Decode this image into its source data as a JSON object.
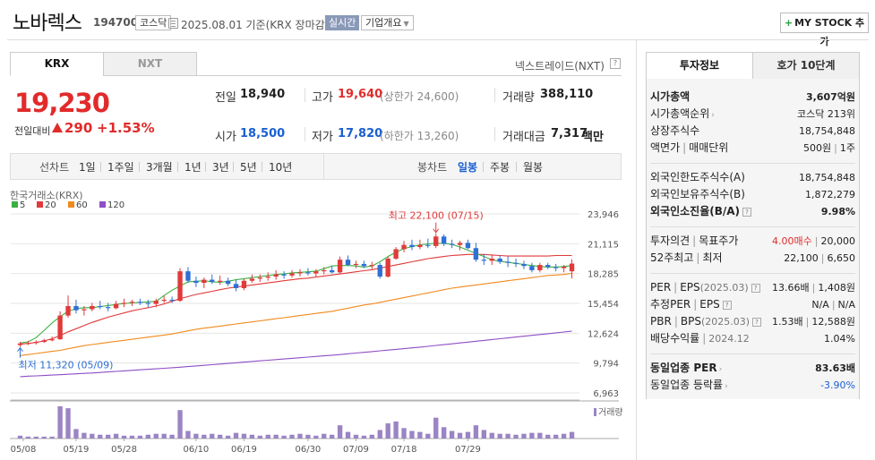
{
  "header": {
    "name": "노바렉스",
    "code": "194700",
    "market": "코스닥",
    "date_text": "2025.08.01 기준(KRX 장마감)",
    "realtime_label": "실시간",
    "overview_label": "기업개요",
    "mystock_label": "MY STOCK 추가"
  },
  "exchange_tabs": {
    "krx": "KRX",
    "nxt": "NXT"
  },
  "nxt_link": "넥스트레이드(NXT)",
  "price": {
    "current": "19,230",
    "change_label": "전일대비",
    "change_value": "290",
    "change_pct": "+1.53%"
  },
  "quote": {
    "prev_label": "전일",
    "prev_value": "18,940",
    "high_label": "고가",
    "high_value": "19,640",
    "upper_limit": "(상한가 24,600)",
    "volume_label": "거래량",
    "volume_value": "388,110",
    "open_label": "시가",
    "open_value": "18,500",
    "low_label": "저가",
    "low_value": "17,820",
    "lower_limit": "(하한가 13,260)",
    "amount_label": "거래대금",
    "amount_value": "7,317",
    "amount_unit": "백만"
  },
  "period_bar": {
    "line_label": "선차트",
    "line_periods": [
      "1일",
      "1주일",
      "3개월",
      "1년",
      "3년",
      "5년",
      "10년"
    ],
    "candle_label": "봉차트",
    "candle_periods": [
      "일봉",
      "주봉",
      "월봉"
    ],
    "selected": "일봉"
  },
  "chart_data": {
    "type": "candlestick",
    "source_label": "한국거래소(KRX)",
    "legend": [
      {
        "name": "5",
        "color": "#3bb143"
      },
      {
        "name": "20",
        "color": "#e03a3a"
      },
      {
        "name": "60",
        "color": "#f08a1e"
      },
      {
        "name": "120",
        "color": "#8e4ec6"
      }
    ],
    "y_ticks": [
      "23,946",
      "21,115",
      "18,285",
      "15,454",
      "12,624",
      "9,794",
      "6,963"
    ],
    "y_range": [
      6963,
      23946
    ],
    "x_labels": [
      "05/08",
      "05/19",
      "05/28",
      "06/10",
      "06/19",
      "06/30",
      "07/09",
      "07/18",
      "07/29"
    ],
    "high_annotation": "최고 22,100 (07/15)",
    "low_annotation": "최저 11,320 (05/09)",
    "volume_label": "거래량",
    "up_color": "#e03a3a",
    "down_color": "#2f6fd6",
    "volume_color": "#9b84c4",
    "candles": [
      {
        "o": 11500,
        "h": 11800,
        "l": 11320,
        "c": 11650
      },
      {
        "o": 11650,
        "h": 11900,
        "l": 11500,
        "c": 11700
      },
      {
        "o": 11700,
        "h": 11950,
        "l": 11550,
        "c": 11800
      },
      {
        "o": 11800,
        "h": 12100,
        "l": 11700,
        "c": 11950
      },
      {
        "o": 11950,
        "h": 12300,
        "l": 11850,
        "c": 12050
      },
      {
        "o": 12050,
        "h": 14700,
        "l": 12000,
        "c": 14300
      },
      {
        "o": 14300,
        "h": 16200,
        "l": 14100,
        "c": 15200
      },
      {
        "o": 15200,
        "h": 15800,
        "l": 14500,
        "c": 14800
      },
      {
        "o": 14800,
        "h": 15200,
        "l": 14300,
        "c": 14900
      },
      {
        "o": 14900,
        "h": 15500,
        "l": 14700,
        "c": 15200
      },
      {
        "o": 15200,
        "h": 15700,
        "l": 14900,
        "c": 15100
      },
      {
        "o": 15100,
        "h": 15500,
        "l": 14700,
        "c": 15000
      },
      {
        "o": 15000,
        "h": 15700,
        "l": 14900,
        "c": 15400
      },
      {
        "o": 15400,
        "h": 15900,
        "l": 15100,
        "c": 15500
      },
      {
        "o": 15500,
        "h": 15800,
        "l": 15200,
        "c": 15600
      },
      {
        "o": 15600,
        "h": 15900,
        "l": 15300,
        "c": 15500
      },
      {
        "o": 15500,
        "h": 15800,
        "l": 15100,
        "c": 15400
      },
      {
        "o": 15400,
        "h": 15900,
        "l": 15100,
        "c": 15700
      },
      {
        "o": 15700,
        "h": 16200,
        "l": 15500,
        "c": 15800
      },
      {
        "o": 15800,
        "h": 16100,
        "l": 15500,
        "c": 15700
      },
      {
        "o": 15700,
        "h": 18800,
        "l": 15600,
        "c": 18500
      },
      {
        "o": 18500,
        "h": 18900,
        "l": 17400,
        "c": 17600
      },
      {
        "o": 17600,
        "h": 18000,
        "l": 17000,
        "c": 17400
      },
      {
        "o": 17400,
        "h": 17900,
        "l": 16900,
        "c": 17700
      },
      {
        "o": 17700,
        "h": 18200,
        "l": 17300,
        "c": 17500
      },
      {
        "o": 17500,
        "h": 18100,
        "l": 17200,
        "c": 17600
      },
      {
        "o": 17600,
        "h": 17900,
        "l": 17100,
        "c": 17300
      },
      {
        "o": 17300,
        "h": 17700,
        "l": 16600,
        "c": 16900
      },
      {
        "o": 16900,
        "h": 17800,
        "l": 16700,
        "c": 17600
      },
      {
        "o": 17600,
        "h": 18200,
        "l": 17400,
        "c": 17800
      },
      {
        "o": 17800,
        "h": 18200,
        "l": 17500,
        "c": 17900
      },
      {
        "o": 17900,
        "h": 18400,
        "l": 17600,
        "c": 18000
      },
      {
        "o": 18000,
        "h": 18600,
        "l": 17700,
        "c": 18200
      },
      {
        "o": 18200,
        "h": 18500,
        "l": 17800,
        "c": 18100
      },
      {
        "o": 18100,
        "h": 18600,
        "l": 17900,
        "c": 18300
      },
      {
        "o": 18300,
        "h": 18700,
        "l": 18000,
        "c": 18400
      },
      {
        "o": 18400,
        "h": 18800,
        "l": 18100,
        "c": 18300
      },
      {
        "o": 18300,
        "h": 18700,
        "l": 18000,
        "c": 18500
      },
      {
        "o": 18500,
        "h": 18900,
        "l": 18200,
        "c": 18600
      },
      {
        "o": 18600,
        "h": 19000,
        "l": 18300,
        "c": 18400
      },
      {
        "o": 18400,
        "h": 19900,
        "l": 18300,
        "c": 19600
      },
      {
        "o": 19600,
        "h": 20000,
        "l": 19000,
        "c": 19100
      },
      {
        "o": 19100,
        "h": 19500,
        "l": 18800,
        "c": 19200
      },
      {
        "o": 19200,
        "h": 19500,
        "l": 18800,
        "c": 19000
      },
      {
        "o": 19000,
        "h": 19400,
        "l": 18700,
        "c": 19100
      },
      {
        "o": 19100,
        "h": 19300,
        "l": 17800,
        "c": 18000
      },
      {
        "o": 18000,
        "h": 19900,
        "l": 17900,
        "c": 19700
      },
      {
        "o": 19700,
        "h": 20800,
        "l": 19600,
        "c": 20600
      },
      {
        "o": 20600,
        "h": 21400,
        "l": 20300,
        "c": 21000
      },
      {
        "o": 21000,
        "h": 21500,
        "l": 20500,
        "c": 20800
      },
      {
        "o": 20800,
        "h": 21500,
        "l": 20600,
        "c": 21000
      },
      {
        "o": 21000,
        "h": 21600,
        "l": 20700,
        "c": 20900
      },
      {
        "o": 20900,
        "h": 22100,
        "l": 20700,
        "c": 21800
      },
      {
        "o": 21800,
        "h": 22000,
        "l": 20900,
        "c": 21100
      },
      {
        "o": 21100,
        "h": 21500,
        "l": 20700,
        "c": 21000
      },
      {
        "o": 21000,
        "h": 21400,
        "l": 20500,
        "c": 21200
      },
      {
        "o": 21200,
        "h": 21500,
        "l": 20600,
        "c": 20700
      },
      {
        "o": 20700,
        "h": 21200,
        "l": 19400,
        "c": 19600
      },
      {
        "o": 19600,
        "h": 20100,
        "l": 19100,
        "c": 19500
      },
      {
        "o": 19500,
        "h": 20000,
        "l": 19100,
        "c": 19700
      },
      {
        "o": 19700,
        "h": 20000,
        "l": 19200,
        "c": 19400
      },
      {
        "o": 19400,
        "h": 19900,
        "l": 18900,
        "c": 19300
      },
      {
        "o": 19300,
        "h": 19700,
        "l": 18900,
        "c": 19200
      },
      {
        "o": 19200,
        "h": 19500,
        "l": 18700,
        "c": 19000
      },
      {
        "o": 19000,
        "h": 19300,
        "l": 18400,
        "c": 18600
      },
      {
        "o": 18600,
        "h": 19300,
        "l": 18400,
        "c": 19100
      },
      {
        "o": 19100,
        "h": 19300,
        "l": 18700,
        "c": 18900
      },
      {
        "o": 18900,
        "h": 19200,
        "l": 18500,
        "c": 18800
      },
      {
        "o": 18800,
        "h": 19100,
        "l": 18400,
        "c": 18940
      },
      {
        "o": 18500,
        "h": 19640,
        "l": 17820,
        "c": 19230
      }
    ],
    "volumes": [
      3,
      2,
      2,
      2,
      2,
      34,
      32,
      10,
      6,
      5,
      4,
      4,
      5,
      3,
      3,
      3,
      4,
      5,
      5,
      4,
      30,
      8,
      5,
      4,
      5,
      4,
      3,
      6,
      5,
      4,
      3,
      4,
      4,
      3,
      4,
      5,
      4,
      3,
      5,
      4,
      14,
      7,
      4,
      3,
      4,
      9,
      16,
      18,
      11,
      8,
      7,
      5,
      22,
      12,
      8,
      6,
      7,
      14,
      9,
      6,
      5,
      5,
      4,
      5,
      6,
      6,
      4,
      4,
      5,
      7
    ],
    "ma5": [
      11700,
      11800,
      12200,
      12900,
      13600,
      14200,
      14700,
      14950,
      15050,
      15050,
      15150,
      15250,
      15350,
      15450,
      15500,
      15550,
      15600,
      15650,
      16200,
      16700,
      17100,
      17500,
      17550,
      17600,
      17500,
      17450,
      17550,
      17700,
      17800,
      17900,
      18000,
      18100,
      18200,
      18250,
      18350,
      18400,
      18450,
      18500,
      18750,
      19000,
      19050,
      19050,
      19000,
      18900,
      19000,
      19400,
      19900,
      20300,
      20650,
      20850,
      21000,
      21100,
      21150,
      21150,
      21050,
      20800,
      20500,
      20200,
      19900,
      19600,
      19450,
      19350,
      19250,
      19150,
      19050,
      18950,
      18900,
      18900,
      18950,
      19050
    ],
    "ma20": [
      11600,
      11650,
      11750,
      11900,
      12100,
      12400,
      12750,
      13050,
      13350,
      13650,
      13900,
      14150,
      14350,
      14550,
      14750,
      14900,
      15050,
      15200,
      15400,
      15650,
      15900,
      16100,
      16300,
      16450,
      16600,
      16750,
      16900,
      17000,
      17100,
      17200,
      17300,
      17400,
      17500,
      17600,
      17700,
      17800,
      17850,
      17950,
      18050,
      18150,
      18250,
      18350,
      18450,
      18550,
      18650,
      18800,
      18950,
      19100,
      19250,
      19400,
      19550,
      19700,
      19800,
      19900,
      20000,
      20050,
      20100,
      20100,
      20100,
      20050,
      20000,
      19950,
      19950,
      19950,
      19950,
      19950,
      19950,
      20000,
      20000,
      20000
    ],
    "ma60": [
      10500,
      10600,
      10700,
      10800,
      10900,
      11000,
      11150,
      11300,
      11450,
      11550,
      11650,
      11750,
      11850,
      11950,
      12050,
      12150,
      12250,
      12350,
      12450,
      12550,
      12700,
      12850,
      13000,
      13100,
      13200,
      13300,
      13400,
      13500,
      13600,
      13700,
      13800,
      13900,
      14000,
      14100,
      14200,
      14300,
      14400,
      14500,
      14600,
      14700,
      14850,
      15000,
      15150,
      15300,
      15400,
      15550,
      15700,
      15850,
      16000,
      16150,
      16300,
      16450,
      16600,
      16750,
      16900,
      17000,
      17100,
      17200,
      17300,
      17400,
      17500,
      17600,
      17700,
      17800,
      17900,
      18000,
      18100,
      18150,
      18200,
      18300
    ],
    "ma120": [
      8500,
      8550,
      8580,
      8610,
      8650,
      8690,
      8730,
      8770,
      8810,
      8850,
      8900,
      8950,
      9000,
      9050,
      9100,
      9150,
      9200,
      9250,
      9300,
      9350,
      9400,
      9460,
      9520,
      9580,
      9640,
      9700,
      9760,
      9820,
      9880,
      9940,
      10000,
      10060,
      10120,
      10180,
      10240,
      10300,
      10360,
      10420,
      10480,
      10540,
      10600,
      10670,
      10740,
      10810,
      10880,
      10950,
      11020,
      11090,
      11160,
      11230,
      11300,
      11380,
      11460,
      11540,
      11620,
      11700,
      11780,
      11860,
      11940,
      12020,
      12100,
      12180,
      12260,
      12340,
      12420,
      12500,
      12580,
      12660,
      12740,
      12820
    ]
  },
  "invest_tabs": {
    "info": "투자정보",
    "hoga": "호가 10단계"
  },
  "invest_info": {
    "market_cap_label": "시가총액",
    "market_cap_value": "3,607억원",
    "cap_rank_label": "시가총액순위",
    "cap_rank_value": "코스닥 213위",
    "shares_label": "상장주식수",
    "shares_value": "18,754,848",
    "face_label": "액면가",
    "trade_unit_label": "매매단위",
    "face_value": "500원",
    "trade_unit_value": "1주",
    "foreign_limit_label": "외국인한도주식수(A)",
    "foreign_limit_value": "18,754,848",
    "foreign_hold_label": "외국인보유주식수(B)",
    "foreign_hold_value": "1,872,279",
    "foreign_ratio_label": "외국인소진율(B/A)",
    "foreign_ratio_value": "9.98%",
    "opinion_label": "투자의견",
    "target_label": "목표주가",
    "opinion_value": "4.00매수",
    "target_value": "20,000",
    "w52_high_label": "52주최고",
    "w52_low_label": "최저",
    "w52_high_value": "22,100",
    "w52_low_value": "6,650",
    "per_label": "PER",
    "eps_label": "EPS",
    "per_period": "(2025.03)",
    "per_value": "13.66배",
    "eps_value": "1,408원",
    "est_per_label": "추정PER",
    "est_eps_label": "EPS",
    "est_per_value": "N/A",
    "est_eps_value": "N/A",
    "pbr_label": "PBR",
    "bps_label": "BPS",
    "pbr_period": "(2025.03)",
    "pbr_value": "1.53배",
    "bps_value": "12,588원",
    "div_label": "배당수익률",
    "div_period": "2024.12",
    "div_value": "1.04%",
    "sector_per_label": "동일업종 PER",
    "sector_per_value": "83.63배",
    "sector_rate_label": "동일업종 등락률",
    "sector_rate_value": "-3.90%"
  }
}
